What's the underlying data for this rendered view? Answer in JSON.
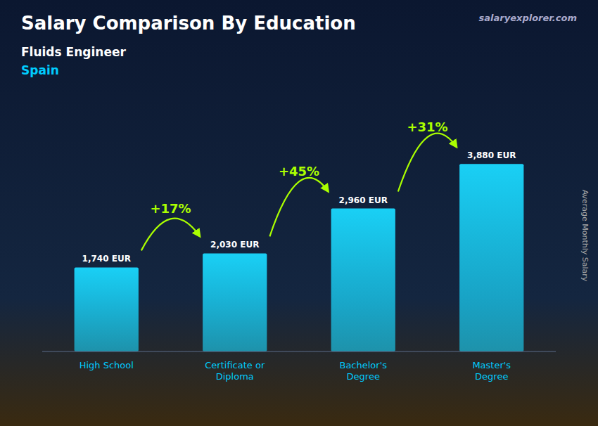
{
  "chart_data": {
    "type": "bar",
    "title": "Salary Comparison By Education",
    "subtitle": [
      "Fluids Engineer",
      "Spain"
    ],
    "ylabel": "Average Monthly Salary",
    "annotations": [
      "salaryexplorer.com",
      "+17%",
      "+45%",
      "+31%"
    ],
    "categories": [
      "High School",
      "Certificate or\nDiploma",
      "Bachelor's\nDegree",
      "Master's\nDegree"
    ],
    "values": [
      1740,
      2030,
      2960,
      3880
    ],
    "value_labels": [
      "1,740 EUR",
      "2,030 EUR",
      "2,960 EUR",
      "3,880 EUR"
    ],
    "data_labels": true,
    "color": "#1ad9ff",
    "ylim": [
      0,
      4800
    ],
    "tick_labels": "x",
    "grid": false
  }
}
